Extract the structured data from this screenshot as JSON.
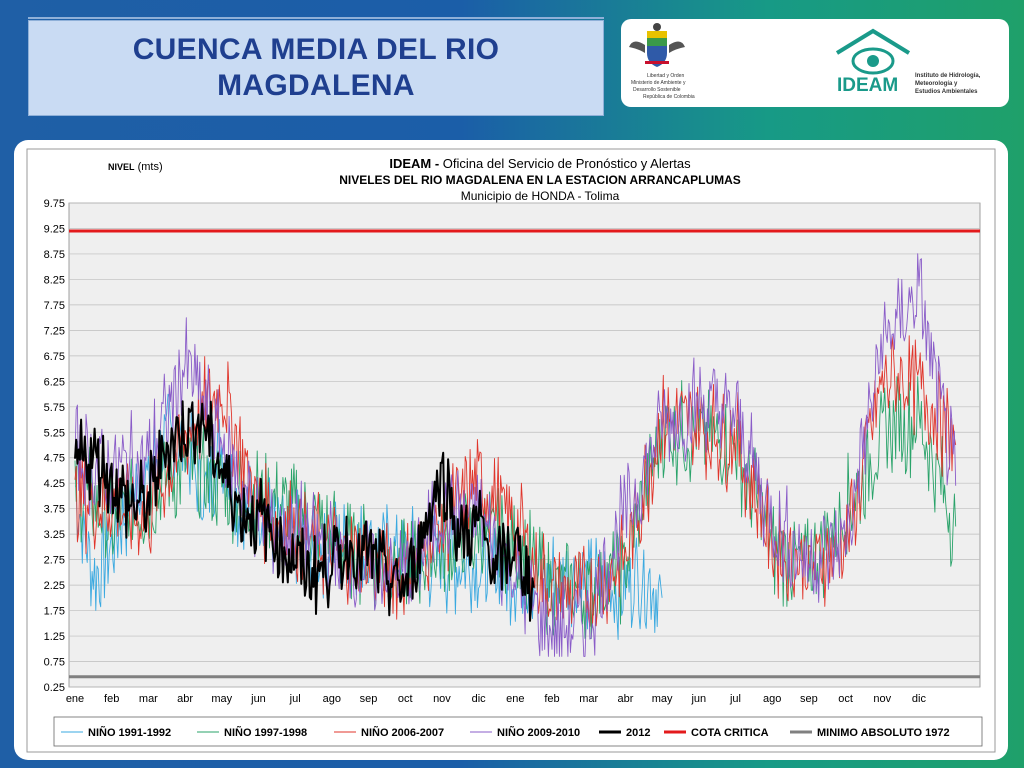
{
  "header": {
    "title_line1": "CUENCA MEDIA DEL RIO",
    "title_line2": "MAGDALENA"
  },
  "logos": {
    "ministry_lines": [
      "Libertad y Orden",
      "Ministerio de Ambiente y",
      "Desarrollo Sostenible",
      "República de Colombia"
    ],
    "ideam_name": "IDEAM",
    "ideam_lines": [
      "Instituto de Hidrología,",
      "Meteorología y",
      "Estudios Ambientales"
    ]
  },
  "colors": {
    "nino_1991": "#3aa9e0",
    "nino_1997": "#2aa36a",
    "nino_2006": "#e0352b",
    "nino_2009": "#8a5cc8",
    "y2012": "#000000",
    "cota": "#e31a1c",
    "minimo": "#808080"
  },
  "chart_data": {
    "type": "line",
    "title_org": "IDEAM -",
    "title_rest": " Oficina del Servicio de Pronóstico y Alertas",
    "title2": "NIVELES DEL RIO MAGDALENA EN LA ESTACION ARRANCAPLUMAS",
    "subtitle": "Municipio de HONDA - Tolima",
    "ylabel_bold": "NIVEL",
    "ylabel_rest": " (mts)",
    "ylim": [
      0.25,
      9.75
    ],
    "yticks": [
      "9.75",
      "9.25",
      "8.75",
      "8.25",
      "7.75",
      "7.25",
      "6.75",
      "6.25",
      "5.75",
      "5.25",
      "4.75",
      "4.25",
      "3.75",
      "3.25",
      "2.75",
      "2.25",
      "1.75",
      "1.25",
      "0.75",
      "0.25"
    ],
    "xticks": [
      "ene",
      "feb",
      "mar",
      "abr",
      "may",
      "jun",
      "jul",
      "ago",
      "sep",
      "oct",
      "nov",
      "dic",
      "ene",
      "feb",
      "mar",
      "abr",
      "may",
      "jun",
      "jul",
      "ago",
      "sep",
      "oct",
      "nov",
      "dic"
    ],
    "grid": true,
    "legend_position": "bottom",
    "series": [
      {
        "name": "NIÑO 1991-1992",
        "key": "nino_1991",
        "x": [
          0,
          0.5,
          1,
          1.5,
          2,
          2.5,
          3,
          3.5,
          4,
          4.5,
          5,
          5.5,
          6,
          15,
          15.5,
          16
        ],
        "values": [
          4.2,
          2.4,
          3.1,
          3.9,
          4.4,
          5.2,
          4.9,
          3.9,
          5.0,
          3.6,
          3.9,
          3.2,
          3.1,
          2.2,
          2.5,
          2.0
        ]
      },
      {
        "name": "NIÑO 1997-1998",
        "key": "nino_1997",
        "x": [
          0,
          1,
          2,
          3,
          4,
          5,
          6,
          7,
          8,
          9,
          10,
          11,
          12,
          13,
          14,
          15,
          16,
          17,
          18,
          19,
          20,
          21,
          22,
          23,
          24
        ],
        "values": [
          4.3,
          3.4,
          3.9,
          4.6,
          4.2,
          4.0,
          3.7,
          3.2,
          2.8,
          2.6,
          3.0,
          3.2,
          3.0,
          2.2,
          2.1,
          2.6,
          5.3,
          5.2,
          5.0,
          3.0,
          2.6,
          3.7,
          5.2,
          5.5,
          3.4
        ]
      },
      {
        "name": "NIÑO 2006-2007",
        "key": "nino_2006",
        "x": [
          0,
          1,
          2,
          3,
          4,
          5,
          6,
          7,
          8,
          9,
          10,
          11,
          12,
          13,
          14,
          15,
          16,
          17,
          18,
          19,
          20,
          21,
          22,
          23,
          24
        ],
        "values": [
          4.0,
          3.8,
          3.6,
          5.2,
          6.1,
          3.8,
          3.3,
          2.9,
          2.7,
          2.5,
          3.4,
          4.3,
          3.4,
          2.1,
          2.0,
          2.8,
          5.5,
          5.3,
          5.1,
          3.0,
          2.6,
          3.0,
          6.3,
          6.2,
          5.0
        ]
      },
      {
        "name": "NIÑO 2009-2010",
        "key": "nino_2009",
        "x": [
          0,
          1,
          2,
          3,
          4,
          5,
          6,
          7,
          8,
          9,
          10,
          11,
          12,
          13,
          14,
          15,
          16,
          17,
          18,
          19,
          20,
          21,
          22,
          23,
          24
        ],
        "values": [
          4.8,
          4.5,
          4.7,
          6.6,
          5.0,
          3.5,
          3.3,
          3.0,
          2.6,
          2.4,
          3.7,
          3.6,
          2.4,
          1.3,
          1.6,
          3.6,
          5.4,
          5.8,
          5.6,
          3.5,
          2.7,
          3.1,
          6.9,
          8.0,
          4.2
        ]
      },
      {
        "name": "2012",
        "key": "y2012",
        "x": [
          0,
          0.5,
          1,
          1.5,
          2,
          2.5,
          3,
          3.5,
          4,
          4.5,
          5,
          5.5,
          6,
          6.5,
          7,
          7.5,
          8,
          8.5,
          9,
          9.5,
          10,
          10.5,
          11,
          11.5,
          12,
          12.5
        ],
        "values": [
          4.6,
          4.8,
          4.4,
          3.8,
          3.9,
          5.0,
          5.3,
          5.5,
          4.5,
          3.8,
          3.6,
          3.2,
          2.7,
          2.5,
          2.7,
          3.0,
          2.8,
          2.4,
          2.2,
          3.3,
          4.5,
          3.1,
          3.5,
          2.5,
          3.0,
          2.2
        ]
      },
      {
        "name": "COTA CRITICA",
        "key": "cota",
        "x": [
          0,
          24
        ],
        "values": [
          9.2,
          9.2
        ]
      },
      {
        "name": "MINIMO ABSOLUTO 1972",
        "key": "minimo",
        "x": [
          0,
          24
        ],
        "values": [
          0.45,
          0.45
        ]
      }
    ]
  }
}
